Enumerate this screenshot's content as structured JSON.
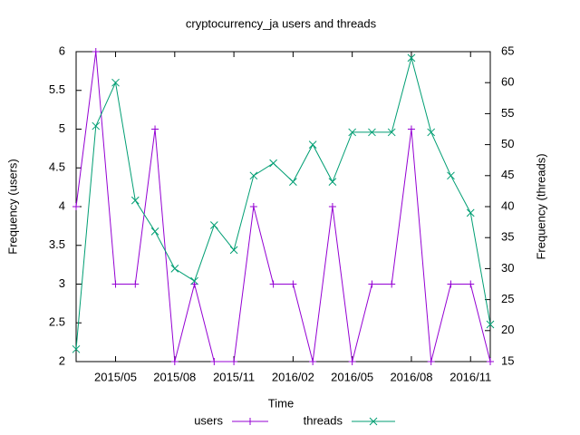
{
  "chart_data": {
    "type": "line",
    "title": "cryptocurrency_ja users and threads",
    "xlabel": "Time",
    "ylabel": "Frequency (users)",
    "y2label": "Frequency (threads)",
    "categories": [
      null,
      null,
      "2015/05",
      null,
      null,
      "2015/08",
      null,
      null,
      "2015/11",
      null,
      null,
      "2016/02",
      null,
      null,
      "2016/05",
      null,
      null,
      "2016/08",
      null,
      null,
      "2016/11",
      null
    ],
    "series": [
      {
        "name": "users",
        "color": "#9400d3",
        "marker": "plus",
        "axis": "y",
        "values": [
          4,
          6,
          3,
          3,
          5,
          2,
          3,
          2,
          2,
          4,
          3,
          3,
          2,
          4,
          2,
          3,
          3,
          5,
          2,
          3,
          3,
          2
        ]
      },
      {
        "name": "threads",
        "color": "#009e73",
        "marker": "cross",
        "axis": "y2",
        "values": [
          17,
          53,
          60,
          41,
          36,
          30,
          28,
          37,
          33,
          45,
          47,
          44,
          50,
          44,
          52,
          52,
          52,
          64,
          52,
          45,
          39,
          21
        ]
      }
    ],
    "ylim": [
      2,
      6
    ],
    "yticks": [
      2,
      2.5,
      3,
      3.5,
      4,
      4.5,
      5,
      5.5,
      6
    ],
    "y2lim": [
      15,
      65
    ],
    "y2ticks": [
      15,
      20,
      25,
      30,
      35,
      40,
      45,
      50,
      55,
      60,
      65
    ],
    "grid": false,
    "legend": "below"
  }
}
